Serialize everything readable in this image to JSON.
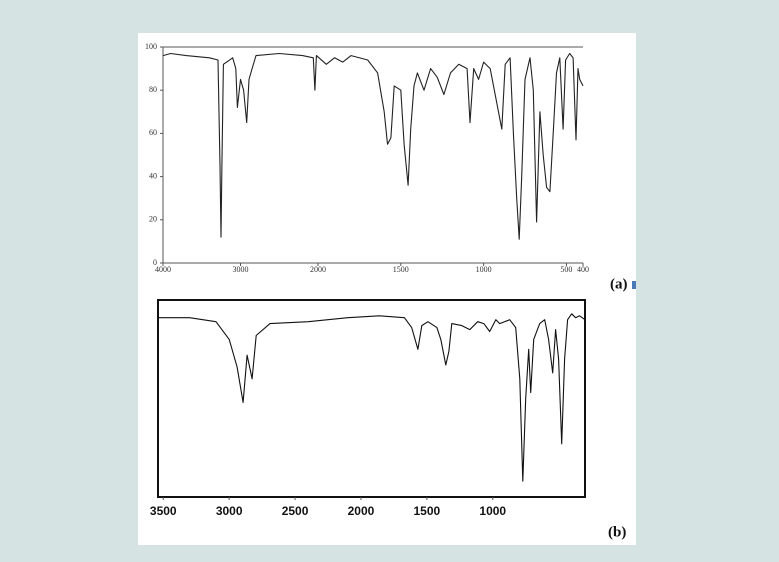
{
  "chart_data": [
    {
      "type": "line",
      "label": "(a)",
      "x_scale_break": 2000,
      "xlim": [
        4000,
        400
      ],
      "ylim": [
        0,
        100
      ],
      "xticks": [
        4000,
        3000,
        2000,
        1500,
        1000,
        500,
        400
      ],
      "yticks": [
        0,
        20,
        40,
        60,
        80,
        100
      ],
      "series": [
        {
          "color": "#222222",
          "x": [
            4000,
            3900,
            3700,
            3400,
            3290,
            3265,
            3252,
            3240,
            3220,
            3100,
            3060,
            3040,
            3000,
            2960,
            2920,
            2890,
            2850,
            2800,
            2500,
            2200,
            2060,
            2040,
            2020,
            1950,
            1900,
            1850,
            1800,
            1700,
            1640,
            1600,
            1580,
            1560,
            1540,
            1500,
            1480,
            1456,
            1440,
            1420,
            1400,
            1360,
            1320,
            1280,
            1240,
            1200,
            1150,
            1100,
            1082,
            1060,
            1030,
            1000,
            960,
            890,
            870,
            840,
            820,
            800,
            785,
            770,
            750,
            720,
            700,
            680,
            660,
            640,
            620,
            600,
            580,
            560,
            540,
            520,
            505,
            480,
            460,
            442,
            430,
            420,
            400
          ],
          "values": [
            96,
            97,
            96,
            95,
            94,
            45,
            12,
            45,
            92,
            95,
            90,
            72,
            85,
            80,
            65,
            85,
            90,
            96,
            97,
            96,
            95,
            80,
            96,
            92,
            95,
            93,
            96,
            94,
            88,
            70,
            55,
            58,
            82,
            80,
            55,
            36,
            62,
            82,
            88,
            80,
            90,
            86,
            78,
            88,
            92,
            90,
            65,
            90,
            85,
            93,
            90,
            62,
            92,
            95,
            60,
            30,
            11,
            40,
            85,
            95,
            80,
            19,
            70,
            50,
            35,
            33,
            60,
            88,
            95,
            62,
            94,
            97,
            95,
            57,
            90,
            85,
            82
          ]
        }
      ]
    },
    {
      "type": "line",
      "label": "(b)",
      "xlim": [
        3540,
        300
      ],
      "ylim": [
        0,
        100
      ],
      "xticks": [
        3500,
        3000,
        2500,
        2000,
        1500,
        1000
      ],
      "series": [
        {
          "color": "#111111",
          "x": [
            3540,
            3300,
            3100,
            3000,
            2940,
            2894,
            2864,
            2826,
            2795,
            2690,
            2400,
            2100,
            1860,
            1670,
            1615,
            1568,
            1538,
            1492,
            1424,
            1394,
            1356,
            1333,
            1311,
            1235,
            1174,
            1114,
            1068,
            1023,
            977,
            947,
            871,
            826,
            795,
            772,
            750,
            727,
            712,
            689,
            644,
            606,
            576,
            545,
            523,
            500,
            477,
            455,
            432,
            401,
            371,
            341,
            300
          ],
          "values": [
            91,
            91,
            89,
            80,
            66,
            48,
            72,
            60,
            82,
            88,
            89,
            91,
            92,
            91,
            86,
            75,
            87,
            89,
            86,
            80,
            67,
            74,
            88,
            87,
            85,
            89,
            88,
            84,
            90,
            88,
            90,
            86,
            60,
            8,
            50,
            75,
            53,
            80,
            88,
            90,
            80,
            63,
            85,
            70,
            27,
            70,
            90,
            93,
            91,
            92,
            90
          ]
        }
      ]
    }
  ]
}
